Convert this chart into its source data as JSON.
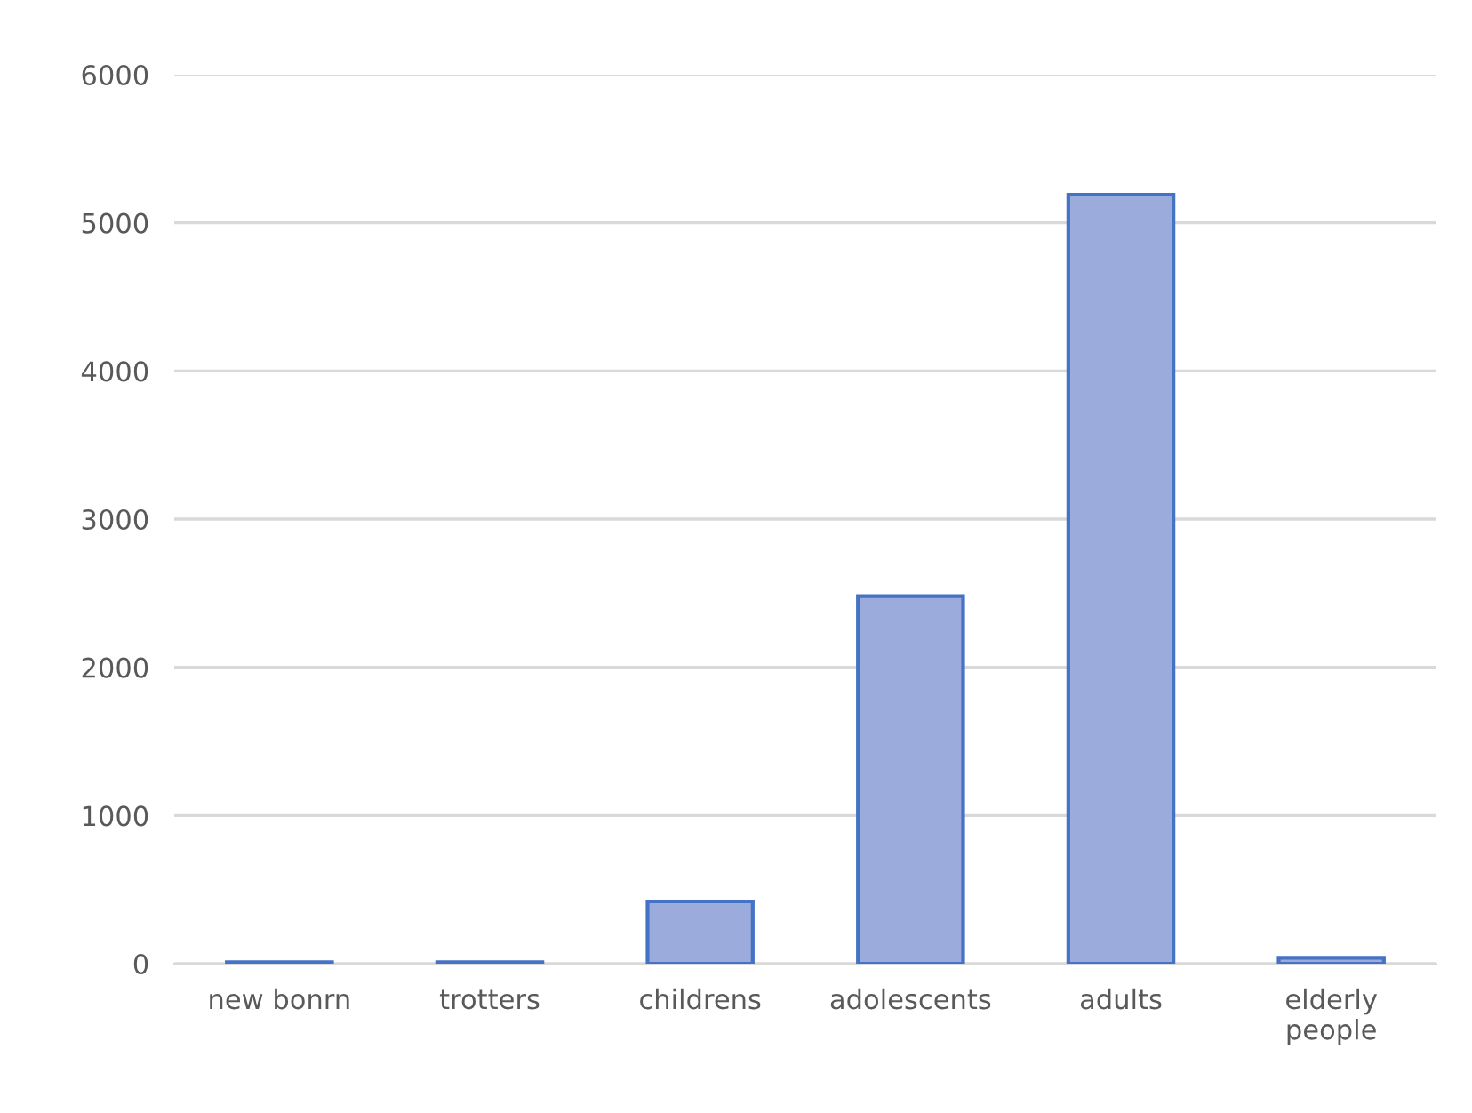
{
  "chart_data": {
    "type": "bar",
    "categories": [
      "new bonrn",
      "trotters",
      "childrens",
      "adolescents",
      "adults",
      "elderly\npeople"
    ],
    "values": [
      10,
      10,
      420,
      2480,
      5190,
      40
    ],
    "color": "#9aabdc",
    "ylim": [
      0,
      6000
    ],
    "yticks": [
      0,
      1000,
      2000,
      3000,
      4000,
      5000,
      6000
    ],
    "grid": "y"
  }
}
